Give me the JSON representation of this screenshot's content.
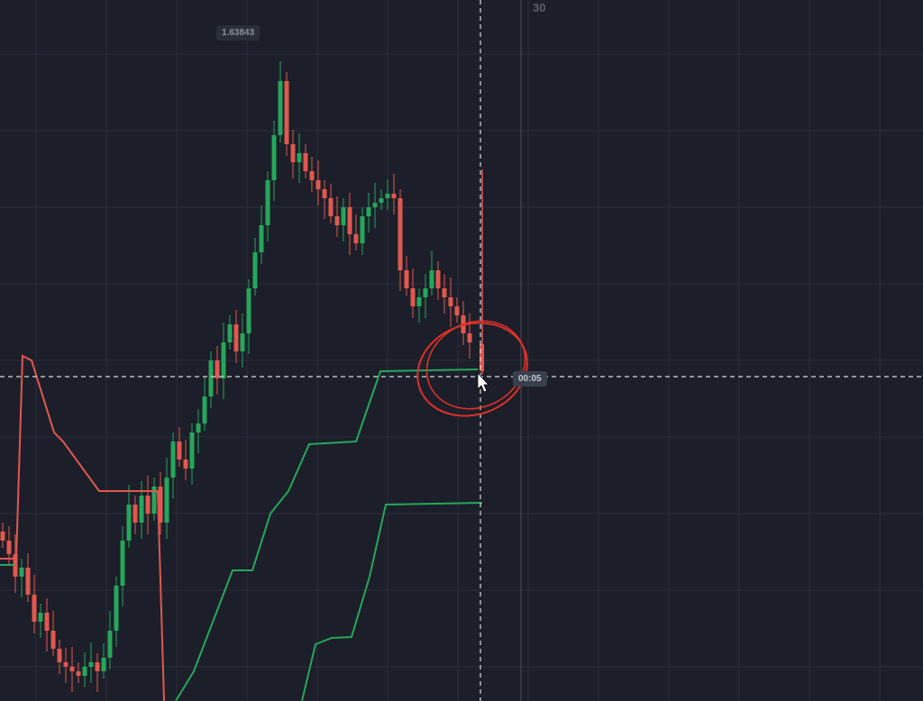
{
  "header": {
    "time_tick": "30"
  },
  "price_label": "1.63843",
  "crosshair": {
    "time_label": "00:05"
  }
}
